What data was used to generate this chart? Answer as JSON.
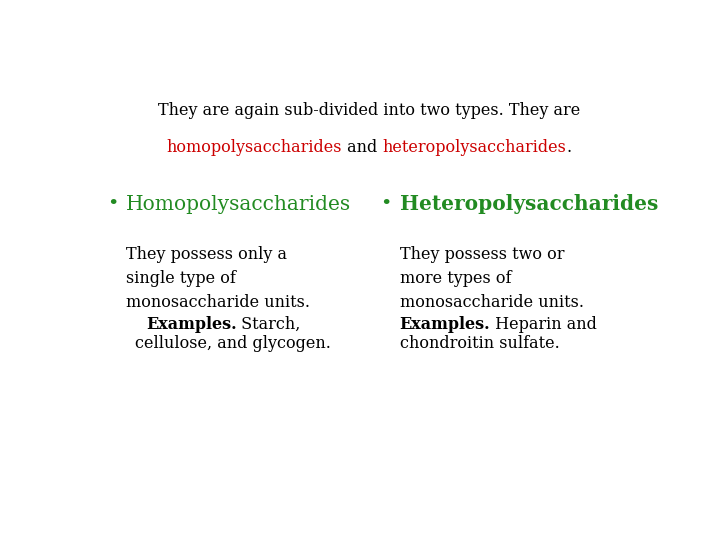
{
  "bg_color": "#ffffff",
  "title_line1": "They are again sub-divided into two types. They are",
  "title_line1_color": "#000000",
  "title_line2_parts": [
    {
      "text": "homopolysaccharides",
      "color": "#cc0000"
    },
    {
      "text": " and ",
      "color": "#000000"
    },
    {
      "text": "heteropolysaccharides",
      "color": "#cc0000"
    },
    {
      "text": ".",
      "color": "#000000"
    }
  ],
  "bullet_left_header": "Homopolysaccharides",
  "bullet_left_header_color": "#228B22",
  "bullet_right_header": "Heteropolysaccharides",
  "bullet_right_header_color": "#228B22",
  "bullet_color": "#228B22",
  "left_body_lines": [
    "They possess only a",
    "single type of",
    "monosaccharide units."
  ],
  "left_example_bold": "Examples.",
  "left_example_rest": " Starch,\ncellulose, and glycogen.",
  "right_body_lines": [
    "They possess two or",
    "more types of",
    "monosaccharide units."
  ],
  "right_example_bold": "Examples.",
  "right_example_rest": " Heparin and\nchondroitin sulfate.",
  "body_color": "#000000",
  "example_bold_color": "#000000",
  "title_fontsize": 11.5,
  "header_fontsize": 14.5,
  "body_fontsize": 11.5,
  "example_bold_fontsize": 11.5,
  "bullet_fontsize": 14
}
